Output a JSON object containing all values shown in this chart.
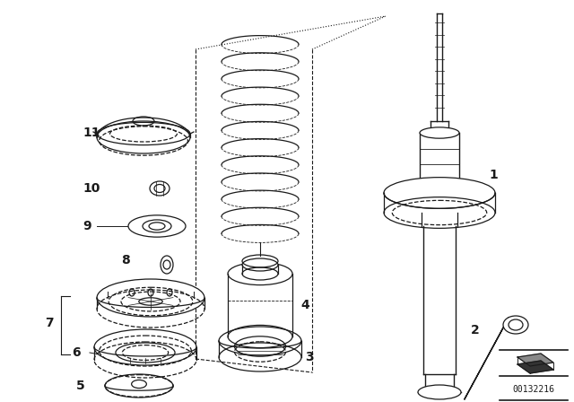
{
  "bg_color": "#ffffff",
  "line_color": "#1a1a1a",
  "part_number_text": "00132216",
  "fig_w": 6.4,
  "fig_h": 4.48,
  "dpi": 100
}
